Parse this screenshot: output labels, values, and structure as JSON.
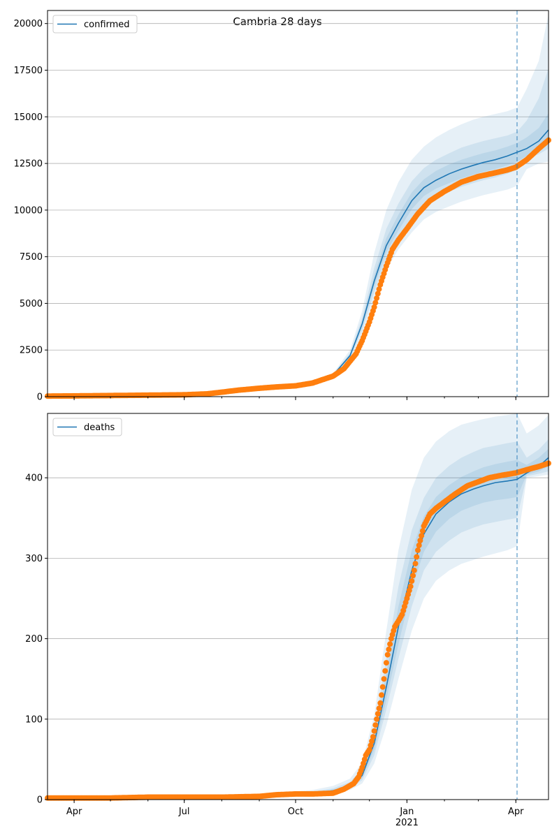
{
  "title": "Cambria 28 days",
  "x_tick_labels": [
    "Apr",
    "Jul",
    "Oct",
    "Jan",
    "Apr"
  ],
  "x_year_label": "2021",
  "colors": {
    "model": "#1f77b4",
    "observed": "#ff7f0e",
    "grid": "#b0b0b0",
    "band": "#1f77b4"
  },
  "chart_data": [
    {
      "type": "line",
      "legend": "confirmed",
      "legend_position": "top-left",
      "grid": "horizontal",
      "xlim": [
        "2020-03-10",
        "2021-04-28"
      ],
      "ylim": [
        0,
        20700
      ],
      "yticks": [
        0,
        2500,
        5000,
        7500,
        10000,
        12500,
        15000,
        17500,
        20000
      ],
      "forecast_start": "2021-04-02",
      "model_line": {
        "x": [
          "2020-10-15",
          "2020-11-01",
          "2020-11-15",
          "2020-11-25",
          "2020-12-05",
          "2020-12-15",
          "2020-12-25",
          "2021-01-05",
          "2021-01-15",
          "2021-01-25",
          "2021-02-05",
          "2021-02-15",
          "2021-02-25",
          "2021-03-05",
          "2021-03-15",
          "2021-03-25",
          "2021-04-02",
          "2021-04-10",
          "2021-04-20",
          "2021-04-28"
        ],
        "y": [
          730,
          1150,
          2200,
          3900,
          6200,
          8100,
          9300,
          10500,
          11200,
          11600,
          11950,
          12200,
          12400,
          12550,
          12700,
          12900,
          13100,
          13300,
          13700,
          14300
        ]
      },
      "bands": [
        {
          "upper": [
            780,
            1250,
            2500,
            4600,
            7700,
            10000,
            11500,
            12700,
            13400,
            13900,
            14300,
            14600,
            14850,
            15000,
            15150,
            15300,
            15500,
            16500,
            18000,
            20500
          ],
          "lower": [
            680,
            1050,
            1900,
            3200,
            5000,
            6800,
            7900,
            8800,
            9500,
            9900,
            10200,
            10450,
            10650,
            10800,
            10950,
            11100,
            11300,
            12200,
            12500,
            12600
          ]
        },
        {
          "upper": [
            760,
            1200,
            2350,
            4250,
            6900,
            9000,
            10350,
            11550,
            12250,
            12700,
            13050,
            13350,
            13550,
            13700,
            13850,
            14000,
            14200,
            14800,
            16000,
            17600
          ],
          "lower": [
            700,
            1100,
            2050,
            3550,
            5600,
            7400,
            8600,
            9600,
            10300,
            10700,
            11000,
            11250,
            11450,
            11600,
            11750,
            11950,
            12150,
            12700,
            13000,
            13300
          ]
        },
        {
          "upper": [
            745,
            1175,
            2270,
            4050,
            6500,
            8500,
            9750,
            10950,
            11650,
            12100,
            12450,
            12700,
            12900,
            13050,
            13200,
            13400,
            13600,
            13900,
            14400,
            15200
          ],
          "lower": [
            715,
            1125,
            2130,
            3750,
            5900,
            7750,
            8900,
            10050,
            10750,
            11150,
            11450,
            11700,
            11900,
            12050,
            12200,
            12400,
            12600,
            12900,
            13200,
            13500
          ]
        }
      ],
      "observed": {
        "x": [
          "2020-03-10",
          "2020-04-01",
          "2020-05-01",
          "2020-06-01",
          "2020-07-01",
          "2020-07-20",
          "2020-08-01",
          "2020-08-15",
          "2020-09-01",
          "2020-09-15",
          "2020-10-01",
          "2020-10-15",
          "2020-11-01",
          "2020-11-10",
          "2020-11-20",
          "2020-11-25",
          "2020-12-01",
          "2020-12-05",
          "2020-12-10",
          "2020-12-15",
          "2020-12-20",
          "2020-12-25",
          "2021-01-01",
          "2021-01-10",
          "2021-01-20",
          "2021-02-01",
          "2021-02-15",
          "2021-03-01",
          "2021-03-15",
          "2021-03-25",
          "2021-04-01",
          "2021-04-10",
          "2021-04-20",
          "2021-04-28"
        ],
        "y": [
          30,
          40,
          60,
          80,
          100,
          150,
          240,
          350,
          450,
          520,
          580,
          730,
          1100,
          1500,
          2300,
          3000,
          4000,
          4800,
          6000,
          7000,
          7900,
          8400,
          9000,
          9800,
          10500,
          11000,
          11500,
          11800,
          12000,
          12150,
          12300,
          12700,
          13300,
          13750
        ]
      }
    },
    {
      "type": "line",
      "legend": "deaths",
      "legend_position": "top-left",
      "grid": "horizontal",
      "xlim": [
        "2020-03-10",
        "2021-04-28"
      ],
      "ylim": [
        0,
        480
      ],
      "yticks": [
        0,
        100,
        200,
        300,
        400
      ],
      "forecast_start": "2021-04-02",
      "model_line": {
        "x": [
          "2020-03-10",
          "2020-06-01",
          "2020-09-01",
          "2020-10-15",
          "2020-11-01",
          "2020-11-15",
          "2020-11-25",
          "2020-12-05",
          "2020-12-15",
          "2020-12-25",
          "2021-01-05",
          "2021-01-15",
          "2021-01-25",
          "2021-02-05",
          "2021-02-15",
          "2021-02-25",
          "2021-03-05",
          "2021-03-15",
          "2021-03-25",
          "2021-04-02",
          "2021-04-10",
          "2021-04-20",
          "2021-04-28"
        ],
        "y": [
          2,
          3,
          5,
          8,
          11,
          17,
          30,
          70,
          140,
          215,
          285,
          330,
          355,
          370,
          380,
          386,
          390,
          394,
          396,
          398,
          406,
          414,
          425
        ]
      },
      "bands": [
        {
          "upper": [
            2,
            3,
            6,
            12,
            17,
            26,
            46,
            105,
            210,
            310,
            385,
            425,
            445,
            458,
            466,
            470,
            473,
            476,
            478,
            480,
            455,
            465,
            478
          ],
          "lower": [
            2,
            3,
            4,
            6,
            8,
            12,
            20,
            45,
            92,
            150,
            210,
            250,
            272,
            285,
            293,
            298,
            302,
            306,
            310,
            315,
            400,
            402,
            404
          ]
        },
        {
          "upper": [
            2,
            3,
            5.5,
            10,
            14,
            22,
            38,
            88,
            175,
            265,
            335,
            375,
            400,
            415,
            425,
            432,
            437,
            440,
            443,
            445,
            425,
            435,
            448
          ],
          "lower": [
            2,
            3,
            4.5,
            7,
            9,
            14,
            24,
            55,
            112,
            175,
            240,
            285,
            308,
            322,
            332,
            338,
            342,
            345,
            348,
            350,
            402,
            405,
            408
          ]
        },
        {
          "upper": [
            2,
            3,
            5.2,
            9,
            12.5,
            19,
            34,
            79,
            157,
            240,
            310,
            352,
            376,
            391,
            401,
            408,
            413,
            417,
            420,
            422,
            416,
            425,
            436
          ],
          "lower": [
            2,
            3,
            4.8,
            7.5,
            10,
            15.5,
            27,
            62,
            124,
            193,
            262,
            308,
            333,
            349,
            359,
            365,
            369,
            372,
            374,
            376,
            404,
            408,
            414
          ]
        }
      ],
      "observed": {
        "x": [
          "2020-03-10",
          "2020-04-01",
          "2020-05-01",
          "2020-06-01",
          "2020-07-01",
          "2020-08-01",
          "2020-09-01",
          "2020-09-15",
          "2020-10-01",
          "2020-10-15",
          "2020-11-01",
          "2020-11-10",
          "2020-11-18",
          "2020-11-22",
          "2020-11-25",
          "2020-11-28",
          "2020-12-01",
          "2020-12-04",
          "2020-12-07",
          "2020-12-10",
          "2020-12-13",
          "2020-12-16",
          "2020-12-19",
          "2020-12-22",
          "2020-12-25",
          "2020-12-28",
          "2021-01-01",
          "2021-01-04",
          "2021-01-07",
          "2021-01-10",
          "2021-01-15",
          "2021-01-20",
          "2021-01-25",
          "2021-02-01",
          "2021-02-10",
          "2021-02-20",
          "2021-03-01",
          "2021-03-10",
          "2021-03-20",
          "2021-04-01",
          "2021-04-10",
          "2021-04-20",
          "2021-04-28"
        ],
        "y": [
          2,
          2,
          2,
          3,
          3,
          3,
          4,
          6,
          7,
          7,
          8,
          13,
          20,
          28,
          40,
          55,
          62,
          78,
          100,
          120,
          150,
          180,
          200,
          215,
          222,
          230,
          250,
          265,
          285,
          310,
          340,
          355,
          362,
          370,
          380,
          390,
          395,
          400,
          403,
          406,
          410,
          414,
          418
        ]
      }
    }
  ]
}
